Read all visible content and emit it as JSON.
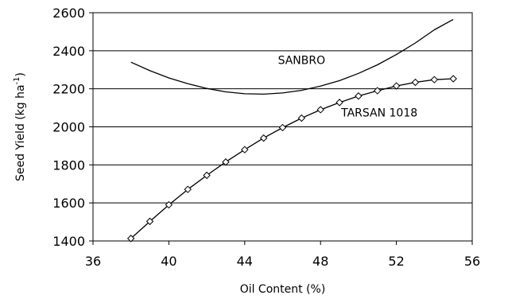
{
  "chart_data": {
    "type": "line",
    "title": "",
    "xlabel": "Oil Content (%)",
    "ylabel": {
      "main": "Seed Yield (kg ha",
      "superscript": "-1",
      "close": ")"
    },
    "xlim": [
      36,
      56
    ],
    "ylim": [
      1400,
      2600
    ],
    "xticks": [
      "36",
      "40",
      "44",
      "48",
      "52",
      "56"
    ],
    "yticks": [
      "1400",
      "1600",
      "1800",
      "2000",
      "2200",
      "2400",
      "2600"
    ],
    "grid": "horizontal",
    "legend": "none",
    "series": [
      {
        "name": "SANBRO",
        "marker": "none",
        "color": "#000000",
        "x": [
          38,
          39,
          40,
          41,
          42,
          43,
          44,
          45,
          46,
          47,
          48,
          49,
          50,
          51,
          52,
          53,
          54,
          55
        ],
        "y": [
          2340,
          2295,
          2257,
          2227,
          2202,
          2184,
          2174,
          2172,
          2178,
          2192,
          2214,
          2243,
          2281,
          2326,
          2380,
          2441,
          2510,
          2565
        ]
      },
      {
        "name": "TARSAN 1018",
        "marker": "diamond",
        "color": "#000000",
        "x": [
          38,
          39,
          40,
          41,
          42,
          43,
          44,
          45,
          46,
          47,
          48,
          49,
          50,
          51,
          52,
          53,
          54,
          55
        ],
        "y": [
          1413,
          1503,
          1590,
          1671,
          1745,
          1815,
          1880,
          1941,
          1996,
          2046,
          2090,
          2128,
          2162,
          2190,
          2215,
          2234,
          2248,
          2253
        ]
      }
    ],
    "annotations": [
      {
        "text": "SANBRO",
        "x": 47,
        "y": 2330
      },
      {
        "text": "TARSAN 1018",
        "x": 51.1,
        "y": 2055
      }
    ]
  }
}
